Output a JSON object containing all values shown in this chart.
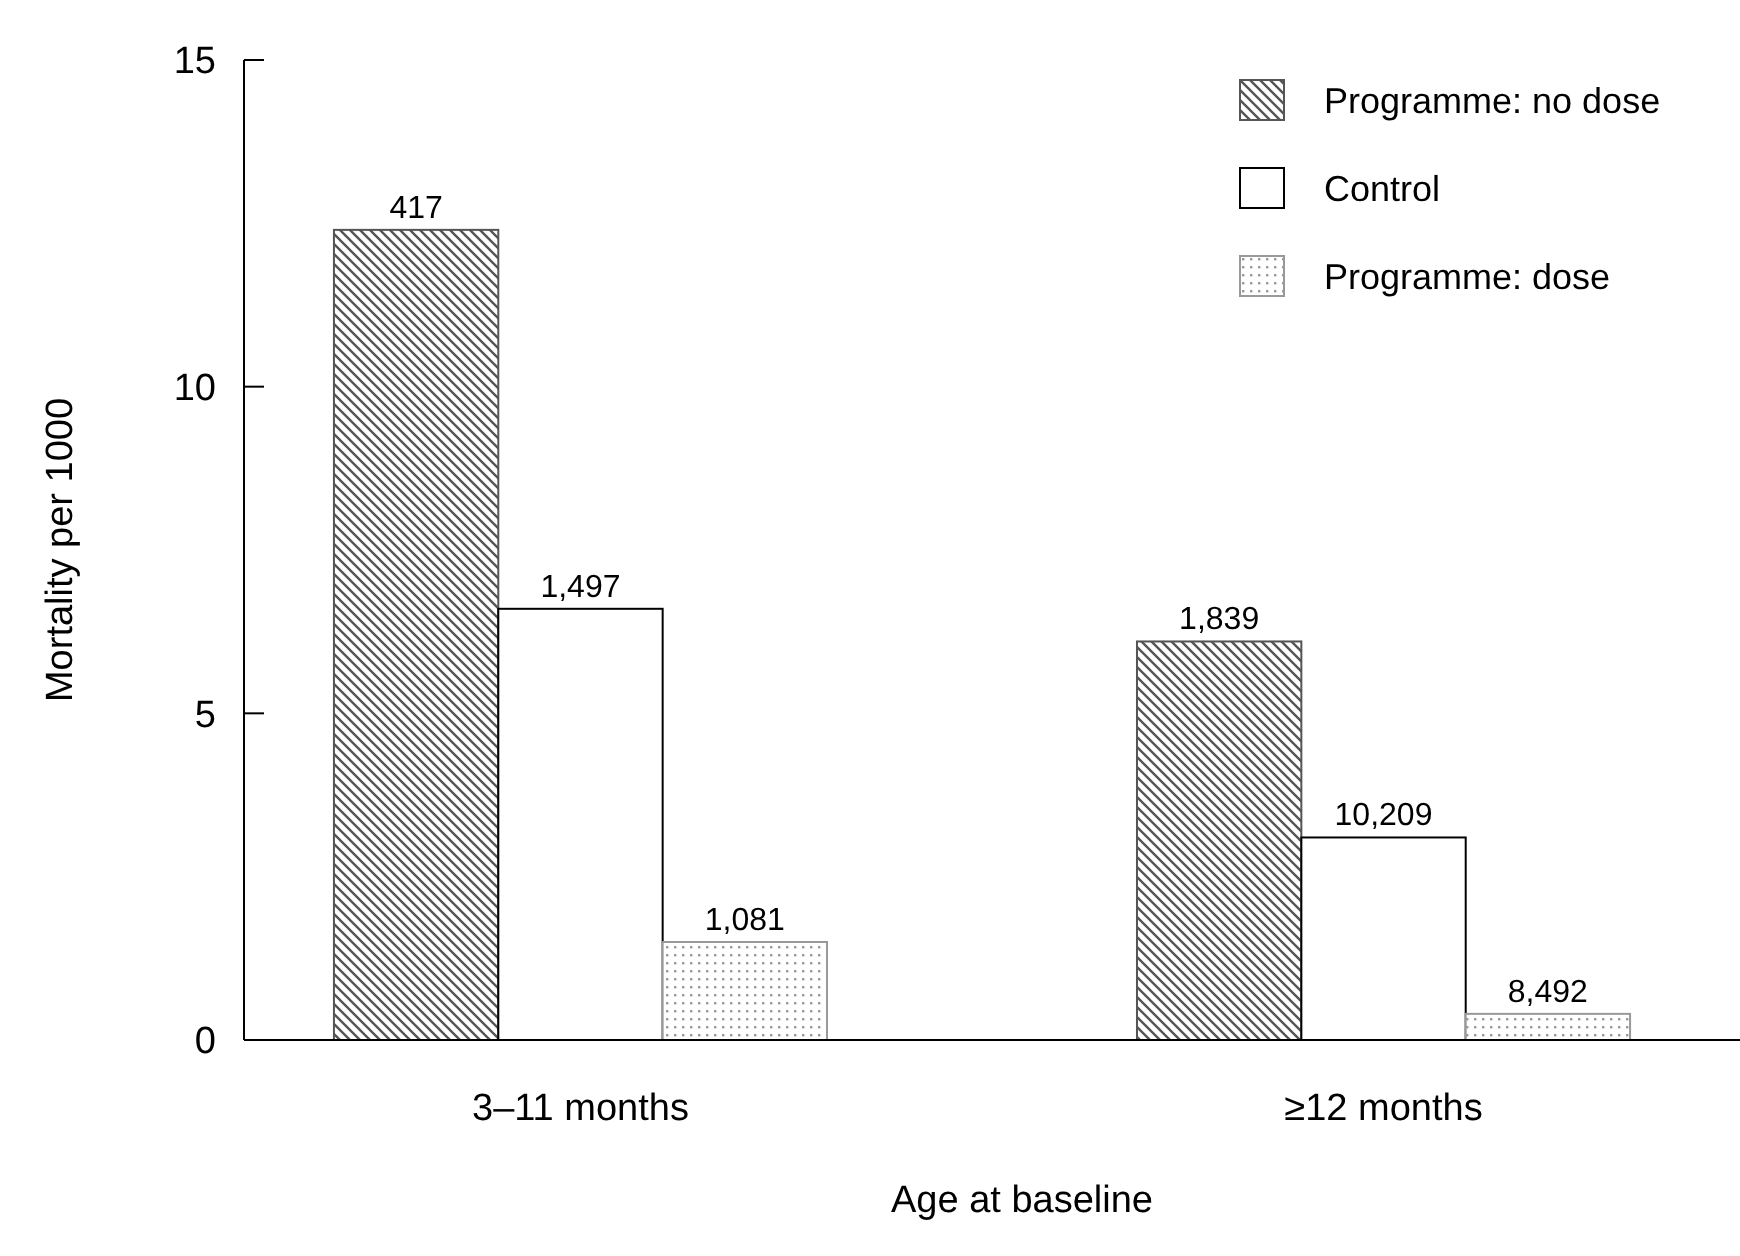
{
  "chart_data": {
    "type": "bar",
    "xlabel": "Age at baseline",
    "ylabel": "Mortality per 1000",
    "categories": [
      "3–11 months",
      "≥12 months"
    ],
    "series": [
      {
        "name": "Programme: no dose",
        "color": "#555555",
        "values": [
          12.4,
          6.1
        ]
      },
      {
        "name": "Control",
        "color": "#ffffff",
        "values": [
          6.6,
          3.1
        ]
      },
      {
        "name": "Programme: dose",
        "color": "#999999",
        "values": [
          1.5,
          0.4
        ]
      }
    ],
    "annotations": [
      "417",
      "1,497",
      "1,081",
      "1,839",
      "10,209",
      "8,492"
    ],
    "ylim": [
      0,
      15
    ],
    "yticks": [
      0,
      5,
      10,
      15
    ],
    "grid": false,
    "legend": "top right"
  }
}
